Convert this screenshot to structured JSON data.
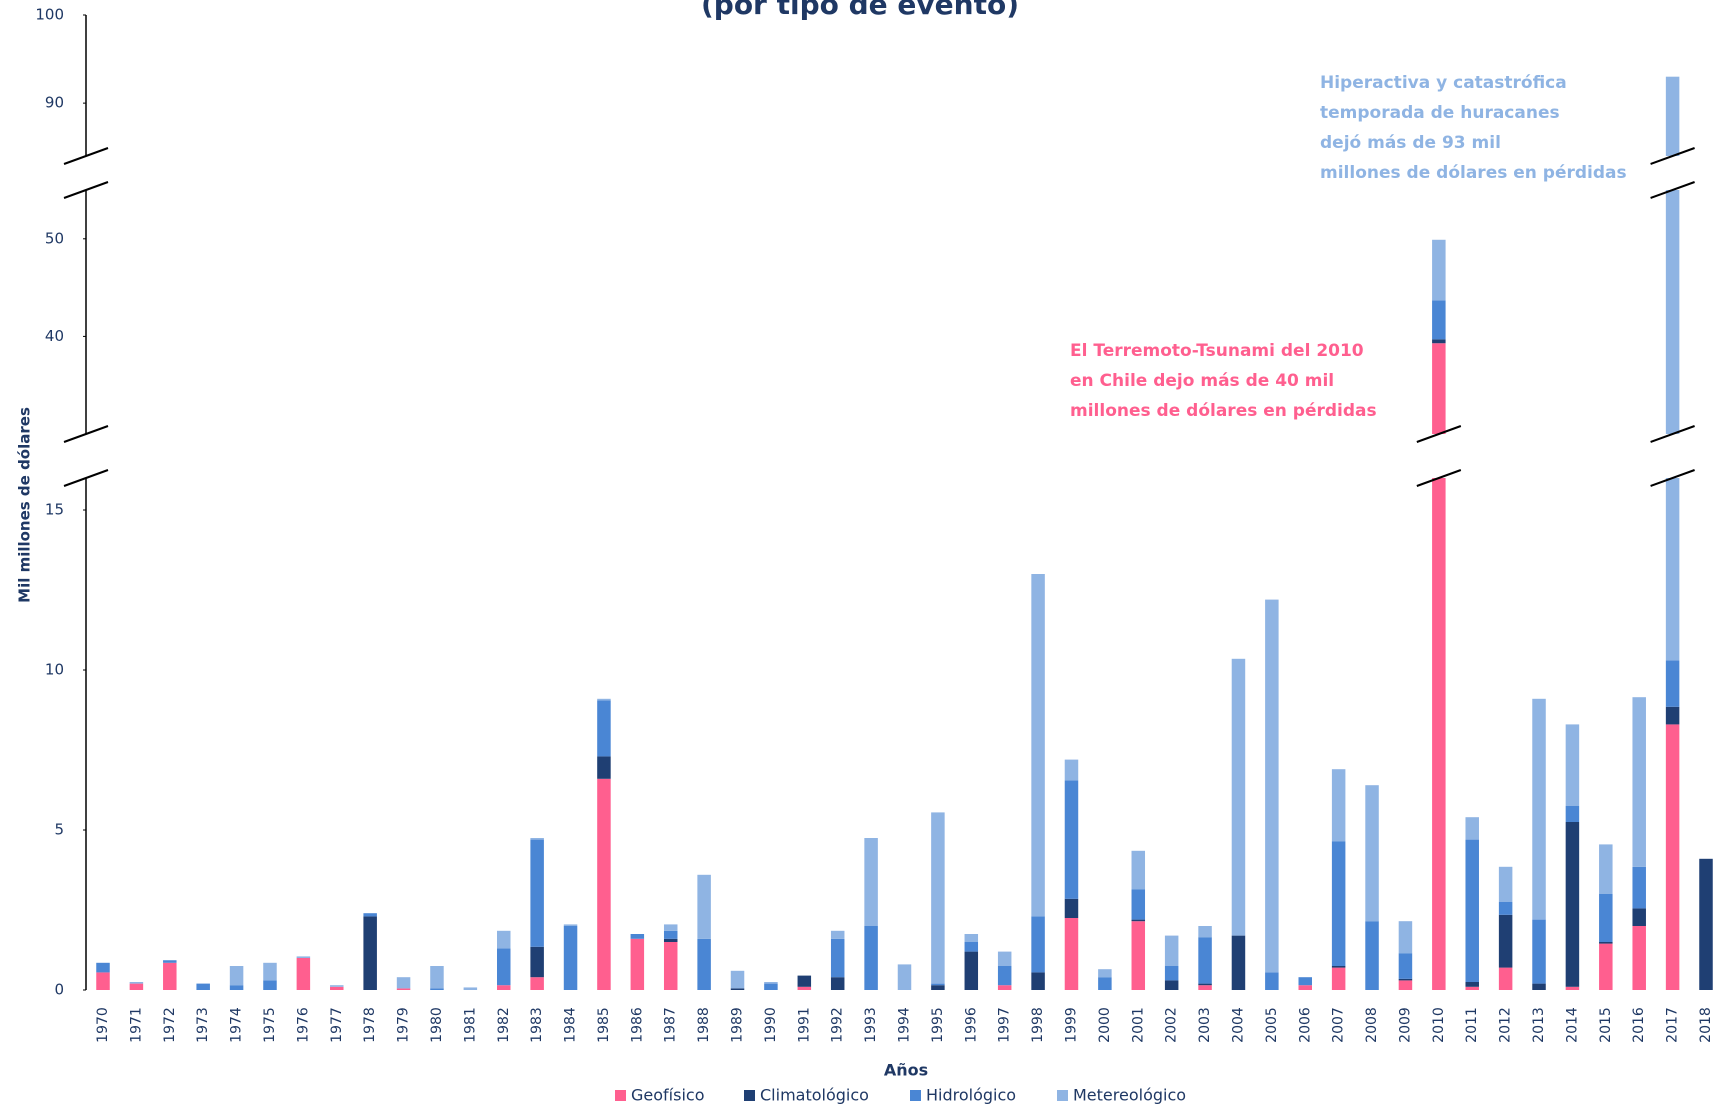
{
  "chart_data": {
    "type": "bar",
    "stacked": true,
    "title": "(por tipo de evento)",
    "x_label": "Años",
    "y_label": "Mil millones de dólares",
    "categories": [
      "1970",
      "1971",
      "1972",
      "1973",
      "1974",
      "1975",
      "1976",
      "1977",
      "1978",
      "1979",
      "1980",
      "1981",
      "1982",
      "1983",
      "1984",
      "1985",
      "1986",
      "1987",
      "1988",
      "1989",
      "1990",
      "1991",
      "1992",
      "1993",
      "1994",
      "1995",
      "1996",
      "1997",
      "1998",
      "1999",
      "2000",
      "2001",
      "2002",
      "2003",
      "2004",
      "2005",
      "2006",
      "2007",
      "2008",
      "2009",
      "2010",
      "2011",
      "2012",
      "2013",
      "2014",
      "2015",
      "2016",
      "2017",
      "2018"
    ],
    "series": [
      {
        "name": "Geofísico",
        "color": "#ff5f8f",
        "values": [
          0.55,
          0.2,
          0.85,
          0,
          0,
          0,
          1.0,
          0.1,
          0,
          0.05,
          0,
          0,
          0.15,
          0.4,
          0,
          6.6,
          1.6,
          1.5,
          0,
          0,
          0,
          0.1,
          0,
          0,
          0,
          0,
          0,
          0.15,
          0,
          2.25,
          0,
          2.15,
          0,
          0.15,
          0,
          0,
          0.15,
          0.7,
          0,
          0.3,
          39.3,
          0.1,
          0.7,
          0,
          0.1,
          1.45,
          2.0,
          8.3,
          0
        ]
      },
      {
        "name": "Climatológico",
        "color": "#1f3f73",
        "values": [
          0,
          0,
          0,
          0,
          0,
          0,
          0,
          0,
          2.3,
          0,
          0,
          0,
          0,
          0.95,
          0,
          0.7,
          0,
          0.1,
          0,
          0.05,
          0,
          0.35,
          0.4,
          0,
          0,
          0.15,
          1.2,
          0,
          0.55,
          0.6,
          0,
          0.05,
          0.3,
          0.05,
          1.7,
          0,
          0,
          0.05,
          0,
          0.05,
          0.4,
          0.15,
          1.65,
          0.2,
          5.15,
          0.05,
          0.55,
          0.55,
          4.1
        ]
      },
      {
        "name": "Hidrológico",
        "color": "#4a86d4",
        "values": [
          0.3,
          0,
          0.08,
          0.2,
          0.15,
          0.3,
          0,
          0,
          0.1,
          0,
          0.05,
          0,
          1.15,
          3.35,
          2.0,
          1.75,
          0.15,
          0.25,
          1.6,
          0,
          0.2,
          0,
          1.2,
          2.0,
          0,
          0.05,
          0.3,
          0.6,
          1.75,
          3.7,
          0.4,
          0.95,
          0.45,
          1.45,
          0,
          0.55,
          0.25,
          3.9,
          2.15,
          0.8,
          4.0,
          4.45,
          0.4,
          2.0,
          0.5,
          1.5,
          1.3,
          1.45,
          0
        ]
      },
      {
        "name": "Metereológico",
        "color": "#8fb4e3",
        "values": [
          0,
          0.05,
          0,
          0,
          0.6,
          0.55,
          0.05,
          0.05,
          0,
          0.35,
          0.7,
          0.08,
          0.55,
          0.05,
          0.05,
          0.05,
          0,
          0.2,
          2.0,
          0.55,
          0.05,
          0,
          0.25,
          2.75,
          0.8,
          5.35,
          0.25,
          0.45,
          10.7,
          0.65,
          0.25,
          1.2,
          0.95,
          0.35,
          8.65,
          11.65,
          0,
          2.25,
          4.25,
          1.0,
          6.2,
          0.7,
          1.1,
          6.9,
          2.55,
          1.55,
          5.3,
          82.7,
          0
        ]
      }
    ],
    "ylim": [
      0,
      100
    ],
    "yticks": [
      0,
      5,
      10,
      15,
      40,
      50,
      90,
      100
    ],
    "axis_segments": [
      [
        0,
        16
      ],
      [
        30,
        55
      ],
      [
        84,
        100
      ]
    ],
    "grid": false,
    "legend": "bottom",
    "annotations": [
      {
        "lines": [
          "Hiperactiva y catastrófica",
          "temporada de huracanes",
          "dejó más de 93 mil",
          "millones de dólares en pérdidas"
        ],
        "color": "#8fb4e3"
      },
      {
        "lines": [
          "El Terremoto-Tsunami del 2010",
          "en Chile dejo más de 40 mil",
          "millones de dólares en pérdidas"
        ],
        "color": "#ff5f8f"
      }
    ]
  }
}
